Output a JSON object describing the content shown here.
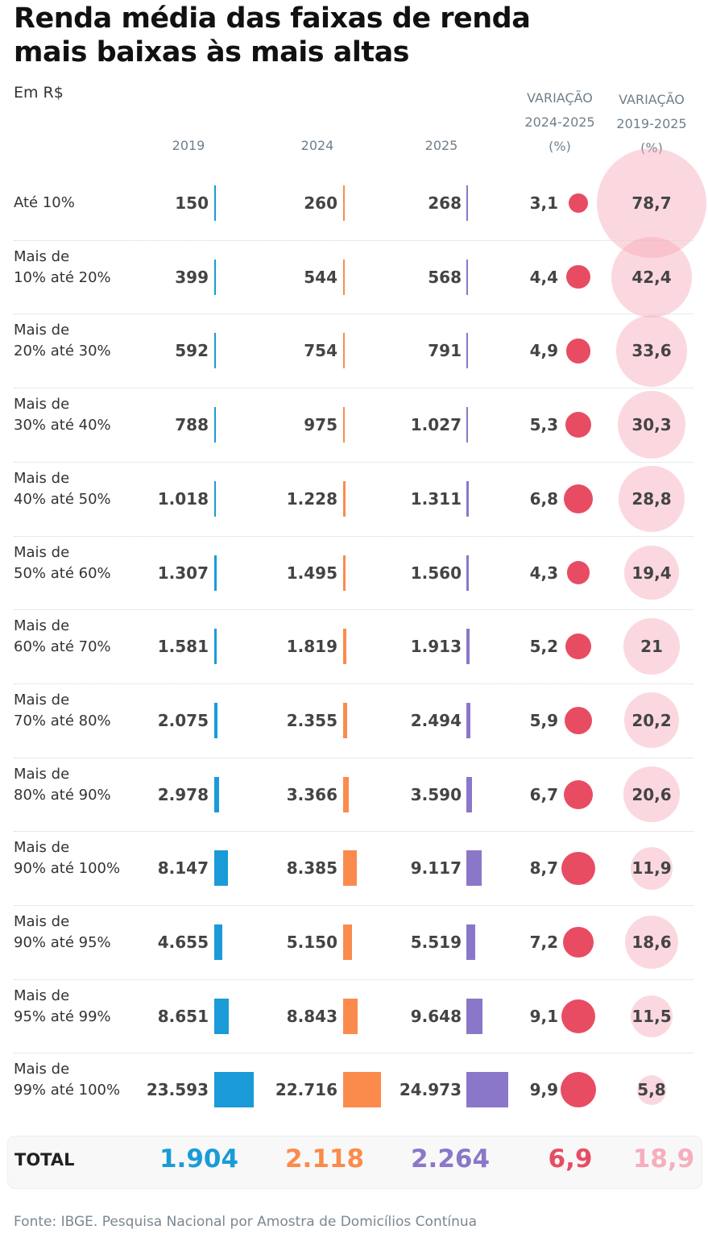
{
  "chart_data": {
    "type": "table",
    "title_lines": [
      "Renda média das faixas de renda",
      "mais baixas às mais altas"
    ],
    "subtitle": "Em R$",
    "columns": [
      {
        "key": "v2019",
        "lines": [
          "2019"
        ],
        "color": "#1a9bd7"
      },
      {
        "key": "v2024",
        "lines": [
          "2024"
        ],
        "color": "#fb8b4c"
      },
      {
        "key": "v2025",
        "lines": [
          "2025"
        ],
        "color": "#8b77c9"
      },
      {
        "key": "var2425",
        "lines": [
          "VARIAÇÃO",
          "2024-2025",
          "(%)"
        ],
        "color": "#e84c63"
      },
      {
        "key": "var1925",
        "lines": [
          "VARIAÇÃO",
          "2019-2025",
          "(%)"
        ],
        "color": "#f5a3b5"
      }
    ],
    "rows": [
      {
        "label": [
          "Até 10%"
        ],
        "v2019": "150",
        "v2024": "260",
        "v2025": "268",
        "var2425": "3,1",
        "var1925": "78,7",
        "n2019": 150,
        "n2024": 260,
        "n2025": 268,
        "nv1": 3.1,
        "nv2": 78.7
      },
      {
        "label": [
          "Mais de",
          "10% até 20%"
        ],
        "v2019": "399",
        "v2024": "544",
        "v2025": "568",
        "var2425": "4,4",
        "var1925": "42,4",
        "n2019": 399,
        "n2024": 544,
        "n2025": 568,
        "nv1": 4.4,
        "nv2": 42.4
      },
      {
        "label": [
          "Mais de",
          "20% até 30%"
        ],
        "v2019": "592",
        "v2024": "754",
        "v2025": "791",
        "var2425": "4,9",
        "var1925": "33,6",
        "n2019": 592,
        "n2024": 754,
        "n2025": 791,
        "nv1": 4.9,
        "nv2": 33.6
      },
      {
        "label": [
          "Mais de",
          "30% até 40%"
        ],
        "v2019": "788",
        "v2024": "975",
        "v2025": "1.027",
        "var2425": "5,3",
        "var1925": "30,3",
        "n2019": 788,
        "n2024": 975,
        "n2025": 1027,
        "nv1": 5.3,
        "nv2": 30.3
      },
      {
        "label": [
          "Mais de",
          "40% até 50%"
        ],
        "v2019": "1.018",
        "v2024": "1.228",
        "v2025": "1.311",
        "var2425": "6,8",
        "var1925": "28,8",
        "n2019": 1018,
        "n2024": 1228,
        "n2025": 1311,
        "nv1": 6.8,
        "nv2": 28.8
      },
      {
        "label": [
          "Mais de",
          "50% até 60%"
        ],
        "v2019": "1.307",
        "v2024": "1.495",
        "v2025": "1.560",
        "var2425": "4,3",
        "var1925": "19,4",
        "n2019": 1307,
        "n2024": 1495,
        "n2025": 1560,
        "nv1": 4.3,
        "nv2": 19.4
      },
      {
        "label": [
          "Mais de",
          "60% até 70%"
        ],
        "v2019": "1.581",
        "v2024": "1.819",
        "v2025": "1.913",
        "var2425": "5,2",
        "var1925": "21",
        "n2019": 1581,
        "n2024": 1819,
        "n2025": 1913,
        "nv1": 5.2,
        "nv2": 21
      },
      {
        "label": [
          "Mais de",
          "70% até 80%"
        ],
        "v2019": "2.075",
        "v2024": "2.355",
        "v2025": "2.494",
        "var2425": "5,9",
        "var1925": "20,2",
        "n2019": 2075,
        "n2024": 2355,
        "n2025": 2494,
        "nv1": 5.9,
        "nv2": 20.2
      },
      {
        "label": [
          "Mais de",
          "80% até 90%"
        ],
        "v2019": "2.978",
        "v2024": "3.366",
        "v2025": "3.590",
        "var2425": "6,7",
        "var1925": "20,6",
        "n2019": 2978,
        "n2024": 3366,
        "n2025": 3590,
        "nv1": 6.7,
        "nv2": 20.6
      },
      {
        "label": [
          "Mais de",
          "90% até 100%"
        ],
        "v2019": "8.147",
        "v2024": "8.385",
        "v2025": "9.117",
        "var2425": "8,7",
        "var1925": "11,9",
        "n2019": 8147,
        "n2024": 8385,
        "n2025": 9117,
        "nv1": 8.7,
        "nv2": 11.9
      },
      {
        "label": [
          "Mais de",
          "90% até 95%"
        ],
        "v2019": "4.655",
        "v2024": "5.150",
        "v2025": "5.519",
        "var2425": "7,2",
        "var1925": "18,6",
        "n2019": 4655,
        "n2024": 5150,
        "n2025": 5519,
        "nv1": 7.2,
        "nv2": 18.6
      },
      {
        "label": [
          "Mais de",
          "95% até 99%"
        ],
        "v2019": "8.651",
        "v2024": "8.843",
        "v2025": "9.648",
        "var2425": "9,1",
        "var1925": "11,5",
        "n2019": 8651,
        "n2024": 8843,
        "n2025": 9648,
        "nv1": 9.1,
        "nv2": 11.5
      },
      {
        "label": [
          "Mais de",
          "99% até 100%"
        ],
        "v2019": "23.593",
        "v2024": "22.716",
        "v2025": "24.973",
        "var2425": "9,9",
        "var1925": "5,8",
        "n2019": 23593,
        "n2024": 22716,
        "n2025": 24973,
        "nv1": 9.9,
        "nv2": 5.8
      }
    ],
    "total": {
      "label": "TOTAL",
      "v2019": "1.904",
      "v2024": "2.118",
      "v2025": "2.264",
      "var2425": "6,9",
      "var1925": "18,9"
    },
    "source": "Fonte: IBGE. Pesquisa Nacional por Amostra de Domicílios Contínua",
    "colors": {
      "total_var1925": "#f6aebd"
    }
  }
}
